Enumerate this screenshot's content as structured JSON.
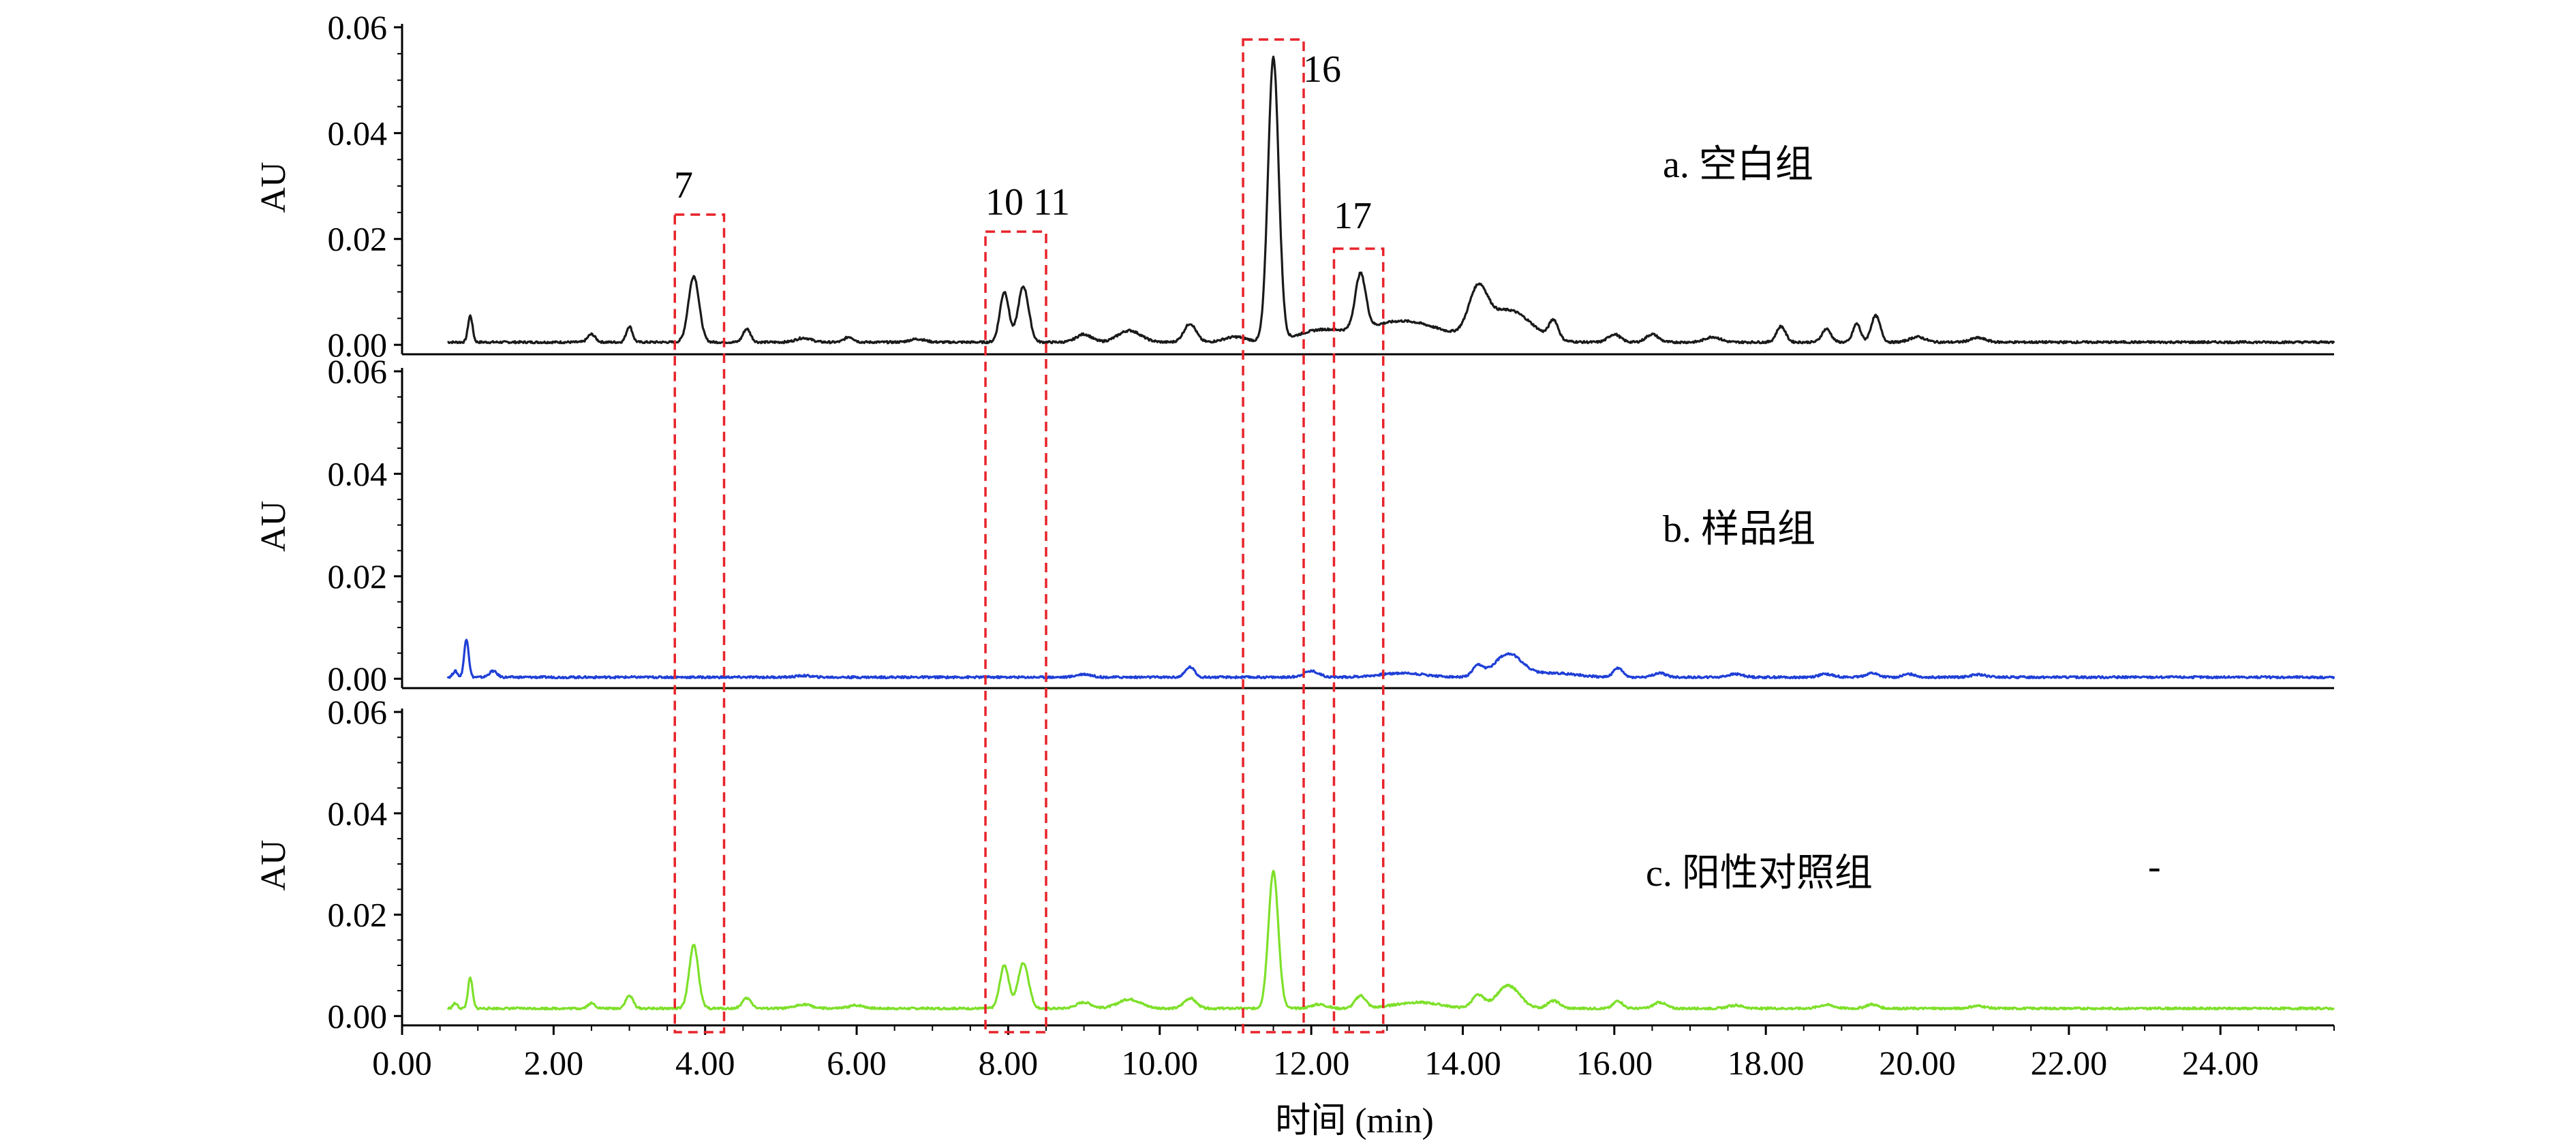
{
  "chart_data": {
    "type": "line",
    "title": "",
    "xlabel": "时间 (min)",
    "ylabel": "AU",
    "xlim": [
      0,
      25.5
    ],
    "x_ticks": [
      0,
      2,
      4,
      6,
      8,
      10,
      12,
      14,
      16,
      18,
      20,
      22,
      24
    ],
    "x_tick_labels": [
      "0.00",
      "2.00",
      "4.00",
      "6.00",
      "8.00",
      "10.00",
      "12.00",
      "14.00",
      "16.00",
      "18.00",
      "20.00",
      "22.00",
      "24.00"
    ],
    "ylim": [
      0,
      0.06
    ],
    "y_tick_labels": [
      "0.00",
      "0.02",
      "0.04",
      "0.06"
    ],
    "grid": false,
    "panels": [
      {
        "label": "a. 空白组",
        "color": "#1a1a1a",
        "baseline": 0.0005,
        "peaks": [
          [
            0.9,
            0.005,
            0.03
          ],
          [
            2.5,
            0.0015,
            0.05
          ],
          [
            3.0,
            0.003,
            0.04
          ],
          [
            3.85,
            0.0125,
            0.07
          ],
          [
            4.55,
            0.0025,
            0.05
          ],
          [
            5.3,
            0.0008,
            0.1
          ],
          [
            5.9,
            0.001,
            0.06
          ],
          [
            6.8,
            0.0006,
            0.1
          ],
          [
            7.95,
            0.0095,
            0.06
          ],
          [
            8.2,
            0.0105,
            0.07
          ],
          [
            9.0,
            0.0015,
            0.1
          ],
          [
            9.6,
            0.0022,
            0.15
          ],
          [
            10.4,
            0.0035,
            0.08
          ],
          [
            11.0,
            0.001,
            0.15
          ],
          [
            11.5,
            0.0535,
            0.07
          ],
          [
            12.1,
            0.002,
            0.3
          ],
          [
            12.65,
            0.0105,
            0.07
          ],
          [
            13.2,
            0.004,
            0.5
          ],
          [
            14.2,
            0.008,
            0.12
          ],
          [
            14.6,
            0.006,
            0.3
          ],
          [
            15.2,
            0.0035,
            0.06
          ],
          [
            16.0,
            0.0015,
            0.08
          ],
          [
            16.5,
            0.0015,
            0.08
          ],
          [
            17.3,
            0.001,
            0.1
          ],
          [
            18.2,
            0.003,
            0.06
          ],
          [
            18.8,
            0.0025,
            0.06
          ],
          [
            19.2,
            0.0035,
            0.05
          ],
          [
            19.45,
            0.005,
            0.06
          ],
          [
            20.0,
            0.001,
            0.1
          ],
          [
            20.8,
            0.0008,
            0.1
          ]
        ]
      },
      {
        "label": "b. 样品组",
        "color": "#1f3fd6",
        "baseline": 0.0003,
        "peaks": [
          [
            0.85,
            0.0075,
            0.03
          ],
          [
            0.7,
            0.0012,
            0.03
          ],
          [
            1.2,
            0.0012,
            0.05
          ],
          [
            5.3,
            0.0003,
            0.1
          ],
          [
            9.0,
            0.0006,
            0.1
          ],
          [
            10.4,
            0.002,
            0.06
          ],
          [
            12.0,
            0.0012,
            0.1
          ],
          [
            13.2,
            0.0008,
            0.3
          ],
          [
            14.2,
            0.002,
            0.07
          ],
          [
            14.6,
            0.0045,
            0.18
          ],
          [
            15.2,
            0.0008,
            0.3
          ],
          [
            16.05,
            0.0018,
            0.06
          ],
          [
            16.6,
            0.0008,
            0.08
          ],
          [
            17.6,
            0.0006,
            0.1
          ],
          [
            18.8,
            0.0006,
            0.1
          ],
          [
            19.4,
            0.0008,
            0.08
          ],
          [
            19.9,
            0.0006,
            0.08
          ],
          [
            20.8,
            0.0005,
            0.1
          ]
        ]
      },
      {
        "label": "c. 阳性对照组",
        "color": "#7ee02a",
        "baseline": 0.0015,
        "peaks": [
          [
            0.9,
            0.006,
            0.03
          ],
          [
            0.7,
            0.001,
            0.03
          ],
          [
            2.5,
            0.001,
            0.05
          ],
          [
            3.0,
            0.0025,
            0.05
          ],
          [
            3.85,
            0.0125,
            0.06
          ],
          [
            4.55,
            0.002,
            0.06
          ],
          [
            5.3,
            0.0008,
            0.1
          ],
          [
            6.0,
            0.0006,
            0.1
          ],
          [
            7.95,
            0.0085,
            0.06
          ],
          [
            8.2,
            0.009,
            0.07
          ],
          [
            9.0,
            0.0012,
            0.1
          ],
          [
            9.6,
            0.0018,
            0.15
          ],
          [
            10.4,
            0.002,
            0.08
          ],
          [
            11.5,
            0.027,
            0.065
          ],
          [
            12.1,
            0.0008,
            0.1
          ],
          [
            12.65,
            0.0025,
            0.07
          ],
          [
            13.4,
            0.0012,
            0.3
          ],
          [
            14.2,
            0.0025,
            0.08
          ],
          [
            14.6,
            0.0045,
            0.15
          ],
          [
            15.2,
            0.0015,
            0.08
          ],
          [
            16.05,
            0.0015,
            0.06
          ],
          [
            16.6,
            0.0012,
            0.08
          ],
          [
            17.6,
            0.0006,
            0.1
          ],
          [
            18.8,
            0.0007,
            0.1
          ],
          [
            19.4,
            0.0008,
            0.08
          ],
          [
            20.8,
            0.0005,
            0.1
          ]
        ]
      }
    ],
    "highlight_boxes": [
      {
        "label": "7",
        "x_range": [
          3.6,
          4.25
        ]
      },
      {
        "label": "10 11",
        "x_range": [
          7.7,
          8.5
        ]
      },
      {
        "label": "16",
        "x_range": [
          11.1,
          11.9
        ]
      },
      {
        "label": "17",
        "x_range": [
          12.3,
          12.95
        ]
      }
    ],
    "highlight_color": "#e8232a",
    "annotation_mark": "-"
  }
}
